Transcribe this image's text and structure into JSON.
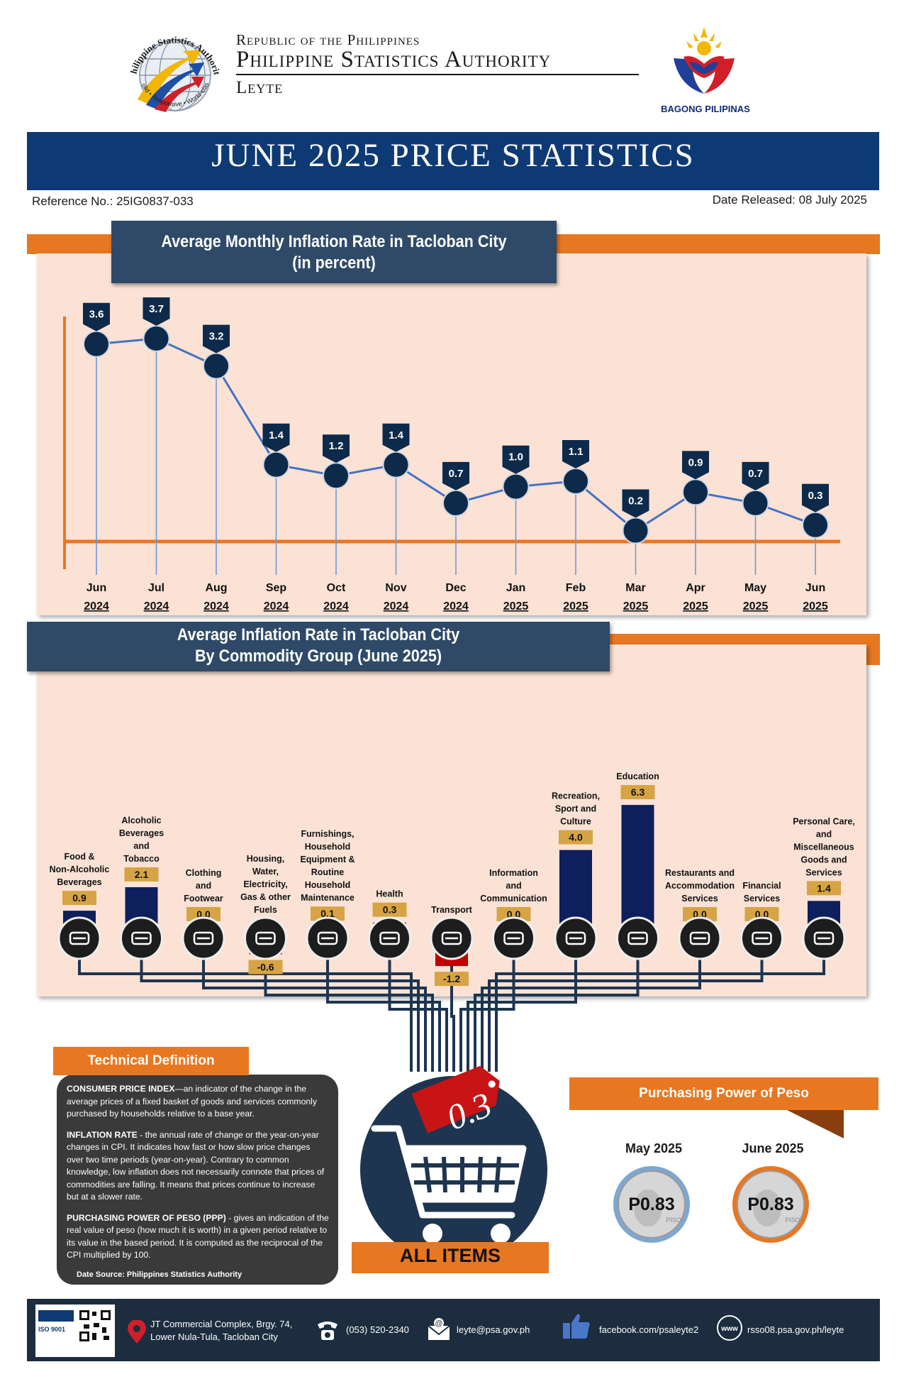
{
  "header": {
    "line1": "Republic of the Philippines",
    "line2": "Philippine Statistics Authority",
    "line3": "Leyte",
    "seal_text": "Philippine Statistics Authority",
    "seal_motto": "Solid • Responsive • World-class",
    "bp_logo": "BAGONG PILIPINAS"
  },
  "title": "JUNE 2025 PRICE STATISTICS",
  "reference": "Reference No.: 25IG0837-033",
  "date_released": "Date Released: 08 July 2025",
  "monthly": {
    "title_line1": "Average Monthly Inflation Rate in Tacloban City",
    "title_line2": "(in percent)"
  },
  "commodity": {
    "title_line1": "Average Inflation Rate in Tacloban City",
    "title_line2": "By Commodity Group (June 2025)"
  },
  "chart_data": [
    {
      "type": "line",
      "title": "Average Monthly Inflation Rate in Tacloban City (in percent)",
      "categories": [
        {
          "month": "Jun",
          "year": "2024"
        },
        {
          "month": "Jul",
          "year": "2024"
        },
        {
          "month": "Aug",
          "year": "2024"
        },
        {
          "month": "Sep",
          "year": "2024"
        },
        {
          "month": "Oct",
          "year": "2024"
        },
        {
          "month": "Nov",
          "year": "2024"
        },
        {
          "month": "Dec",
          "year": "2024"
        },
        {
          "month": "Jan",
          "year": "2025"
        },
        {
          "month": "Feb",
          "year": "2025"
        },
        {
          "month": "Mar",
          "year": "2025"
        },
        {
          "month": "Apr",
          "year": "2025"
        },
        {
          "month": "May",
          "year": "2025"
        },
        {
          "month": "Jun",
          "year": "2025"
        }
      ],
      "values": [
        3.6,
        3.7,
        3.2,
        1.4,
        1.2,
        1.4,
        0.7,
        1.0,
        1.1,
        0.2,
        0.9,
        0.7,
        0.3
      ],
      "data_labels": [
        "3.6",
        "3.7",
        "3.2",
        "1.4",
        "1.2",
        "1.4",
        "0.7",
        "1.0",
        "1.1",
        "0.2",
        "0.9",
        "0.7",
        "0.3"
      ],
      "line_color": "#4472c4",
      "marker_color": "#0d2a4a"
    },
    {
      "type": "bar",
      "title": "Average Inflation Rate in Tacloban City By Commodity Group (June 2025)",
      "categories": [
        {
          "lines": [
            "Food &",
            "Non-Alcoholic",
            "Beverages"
          ],
          "icon": "food-icon"
        },
        {
          "lines": [
            "Alcoholic",
            "Beverages",
            "and",
            "Tobacco"
          ],
          "icon": "bottle-icon"
        },
        {
          "lines": [
            "Clothing",
            "and",
            "Footwear"
          ],
          "icon": "clothing-icon"
        },
        {
          "lines": [
            "Housing,",
            "Water,",
            "Electricity,",
            "Gas & other",
            "Fuels"
          ],
          "icon": "house-icon"
        },
        {
          "lines": [
            "Furnishings,",
            "Household",
            "Equipment &",
            "Routine",
            "Household",
            "Maintenance"
          ],
          "icon": "furniture-icon"
        },
        {
          "lines": [
            "Health"
          ],
          "icon": "health-icon"
        },
        {
          "lines": [
            "Transport"
          ],
          "icon": "transport-icon"
        },
        {
          "lines": [
            "Information",
            "and",
            "Communication"
          ],
          "icon": "phone-icon"
        },
        {
          "lines": [
            "Recreation,",
            "Sport and",
            "Culture"
          ],
          "icon": "theater-icon"
        },
        {
          "lines": [
            "Education"
          ],
          "icon": "education-icon"
        },
        {
          "lines": [
            "Restaurants and",
            "Accommodation",
            "Services"
          ],
          "icon": "restaurant-icon"
        },
        {
          "lines": [
            "Financial",
            "Services"
          ],
          "icon": "money-icon"
        },
        {
          "lines": [
            "Personal Care,",
            "and",
            "Miscellaneous",
            "Goods and",
            "Services"
          ],
          "icon": "personal-care-icon"
        }
      ],
      "values": [
        0.9,
        2.1,
        0.0,
        -0.6,
        0.1,
        0.3,
        -1.2,
        0.0,
        4.0,
        6.3,
        0.0,
        0.0,
        1.4
      ],
      "data_labels": [
        "0.9",
        "2.1",
        "0.0",
        "-0.6",
        "0.1",
        "0.3",
        "-1.2",
        "0.0",
        "4.0",
        "6.3",
        "0.0",
        "0.0",
        "1.4"
      ],
      "positive_color": "#0d1f5c",
      "negative_color": "#c00000"
    }
  ],
  "all_items": {
    "value": "0.3",
    "label": "ALL ITEMS"
  },
  "technical_definition": {
    "heading": "Technical Definition",
    "cpi_term": "CONSUMER PRICE INDEX",
    "cpi_text": "—an indicator of the change in the average prices of a fixed basket of goods and services commonly purchased by households relative to a base year.",
    "inflation_term": "INFLATION RATE",
    "inflation_text": " - the annual rate of change or the year-on-year changes in CPI. It indicates how fast or how slow price changes over two time periods (year-on-year). Contrary to common knowledge, low inflation does not necessarily connote that prices of commodities are falling. It means that prices continue to increase but at a slower rate.",
    "ppp_term": "PURCHASING POWER OF PESO (PPP)",
    "ppp_text": " - gives an indication of the real value of peso (how much it is worth) in a given period relative to its value in the based period. It is computed as the reciprocal of the CPI multiplied by 100.",
    "source": "Date Source: Philippines Statistics Authority"
  },
  "purchasing_power": {
    "heading": "Purchasing Power of Peso",
    "may_label": "May 2025",
    "may_value": "P0.83",
    "june_label": "June 2025",
    "june_value": "P0.83",
    "coin_text": "PISO"
  },
  "footer": {
    "cert": "ISO 9001",
    "address_line1": "JT Commercial Complex, Brgy. 74,",
    "address_line2": "Lower Nula-Tula, Tacloban City",
    "phone": "(053) 520-2340",
    "email": "leyte@psa.gov.ph",
    "facebook": "facebook.com/psaleyte2",
    "website": "rsso08.psa.gov.ph/leyte",
    "web_glyph": "www"
  }
}
